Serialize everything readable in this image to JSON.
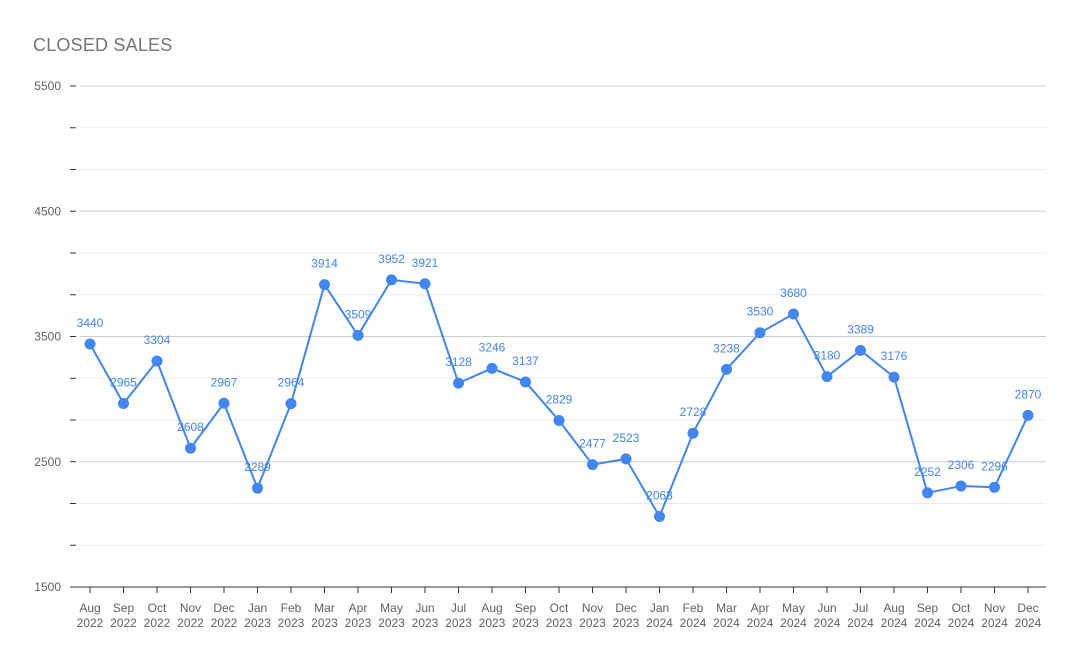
{
  "chart_data": {
    "type": "line",
    "title": "CLOSED SALES",
    "xlabel": "",
    "ylabel": "",
    "ylim": [
      1500,
      5500
    ],
    "y_ticks": [
      "5500",
      "4500",
      "3500",
      "2500",
      "1500"
    ],
    "grid": true,
    "legend": "none",
    "color": "#4285f4",
    "categories": [
      [
        "Aug",
        "2022"
      ],
      [
        "Sep",
        "2022"
      ],
      [
        "Oct",
        "2022"
      ],
      [
        "Nov",
        "2022"
      ],
      [
        "Dec",
        "2022"
      ],
      [
        "Jan",
        "2023"
      ],
      [
        "Feb",
        "2023"
      ],
      [
        "Mar",
        "2023"
      ],
      [
        "Apr",
        "2023"
      ],
      [
        "May",
        "2023"
      ],
      [
        "Jun",
        "2023"
      ],
      [
        "Jul",
        "2023"
      ],
      [
        "Aug",
        "2023"
      ],
      [
        "Sep",
        "2023"
      ],
      [
        "Oct",
        "2023"
      ],
      [
        "Nov",
        "2023"
      ],
      [
        "Dec",
        "2023"
      ],
      [
        "Jan",
        "2024"
      ],
      [
        "Feb",
        "2024"
      ],
      [
        "Mar",
        "2024"
      ],
      [
        "Apr",
        "2024"
      ],
      [
        "May",
        "2024"
      ],
      [
        "Jun",
        "2024"
      ],
      [
        "Jul",
        "2024"
      ],
      [
        "Aug",
        "2024"
      ],
      [
        "Sep",
        "2024"
      ],
      [
        "Oct",
        "2024"
      ],
      [
        "Nov",
        "2024"
      ],
      [
        "Dec",
        "2024"
      ]
    ],
    "values": [
      3440,
      2965,
      3304,
      2608,
      2967,
      2289,
      2964,
      3914,
      3509,
      3952,
      3921,
      3128,
      3246,
      3137,
      2829,
      2477,
      2523,
      2063,
      2728,
      3238,
      3530,
      3680,
      3180,
      3389,
      3176,
      2252,
      2306,
      2296,
      2870
    ]
  }
}
